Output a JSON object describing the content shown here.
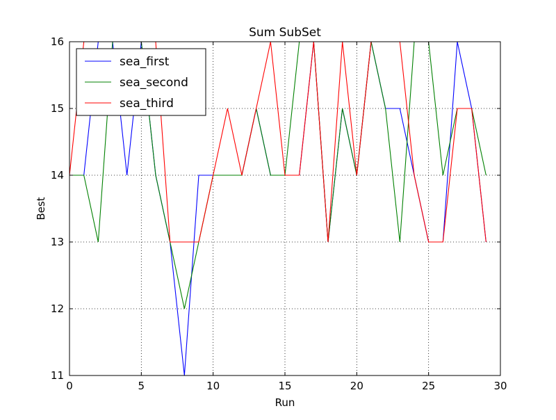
{
  "chart_data": {
    "type": "line",
    "title": "Sum SubSet",
    "xlabel": "Run",
    "ylabel": "Best",
    "xlim": [
      0,
      30
    ],
    "ylim": [
      11,
      16
    ],
    "xticks": [
      0,
      5,
      10,
      15,
      20,
      25,
      30
    ],
    "xtick_labels": [
      "0",
      "5",
      "10",
      "15",
      "20",
      "25",
      "30"
    ],
    "yticks": [
      11,
      12,
      13,
      14,
      15,
      16
    ],
    "ytick_labels": [
      "11",
      "12",
      "13",
      "14",
      "15",
      "16"
    ],
    "grid": true,
    "legend_position": "top-left",
    "x": [
      0,
      1,
      2,
      3,
      4,
      5,
      6,
      7,
      8,
      9,
      10,
      11,
      12,
      13,
      14,
      15,
      16,
      17,
      18,
      19,
      20,
      21,
      22,
      23,
      24,
      25,
      26,
      27,
      28,
      29
    ],
    "series": [
      {
        "name": "sea_first",
        "color": "#0000ff",
        "values": [
          14,
          14,
          16,
          16,
          14,
          16,
          14,
          13,
          11,
          14,
          14,
          14,
          14,
          15,
          14,
          14,
          14,
          16,
          13,
          15,
          14,
          16,
          15,
          15,
          14,
          13,
          13,
          16,
          15,
          13
        ]
      },
      {
        "name": "sea_second",
        "color": "#008000",
        "values": [
          14,
          14,
          13,
          16,
          16,
          16,
          14,
          13,
          12,
          13,
          14,
          14,
          14,
          15,
          14,
          14,
          16,
          16,
          13,
          15,
          14,
          16,
          15,
          13,
          16,
          16,
          14,
          15,
          15,
          14
        ]
      },
      {
        "name": "sea_third",
        "color": "#ff0000",
        "values": [
          14,
          16,
          16,
          16,
          16,
          16,
          16,
          13,
          13,
          13,
          14,
          15,
          14,
          15,
          16,
          14,
          14,
          16,
          13,
          16,
          14,
          16,
          16,
          16,
          14,
          13,
          13,
          15,
          15,
          13
        ]
      }
    ]
  }
}
